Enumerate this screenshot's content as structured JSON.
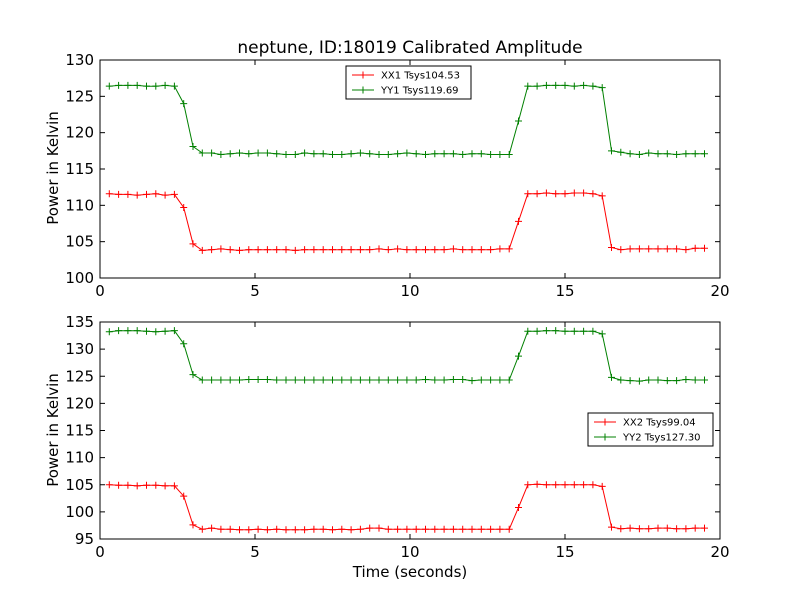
{
  "chart_data": [
    {
      "type": "line",
      "title": "neptune, ID:18019 Calibrated Amplitude",
      "xlabel": "",
      "ylabel": "Power in Kelvin",
      "xlim": [
        0,
        20
      ],
      "ylim": [
        100,
        130
      ],
      "xticks": [
        "0",
        "5",
        "10",
        "15",
        "20"
      ],
      "yticks": [
        "100",
        "105",
        "110",
        "115",
        "120",
        "125",
        "130"
      ],
      "legend_position": "top-center",
      "grid": false,
      "x": [
        0.3,
        0.6,
        0.9,
        1.2,
        1.5,
        1.8,
        2.1,
        2.4,
        2.7,
        3.0,
        3.3,
        3.6,
        3.9,
        4.2,
        4.5,
        4.8,
        5.1,
        5.4,
        5.7,
        6.0,
        6.3,
        6.6,
        6.9,
        7.2,
        7.5,
        7.8,
        8.1,
        8.4,
        8.7,
        9.0,
        9.3,
        9.6,
        9.9,
        10.2,
        10.5,
        10.8,
        11.1,
        11.4,
        11.7,
        12.0,
        12.3,
        12.6,
        12.9,
        13.2,
        13.5,
        13.8,
        14.1,
        14.4,
        14.7,
        15.0,
        15.3,
        15.6,
        15.9,
        16.2,
        16.5,
        16.8,
        17.1,
        17.4,
        17.7,
        18.0,
        18.3,
        18.6,
        18.9,
        19.2,
        19.5
      ],
      "series": [
        {
          "name": "XX1 Tsys104.53",
          "color": "#ff0000",
          "values": [
            111.6,
            111.5,
            111.5,
            111.4,
            111.5,
            111.6,
            111.4,
            111.5,
            109.7,
            104.7,
            103.8,
            103.9,
            104.0,
            103.9,
            103.8,
            103.9,
            103.9,
            103.9,
            103.9,
            103.9,
            103.8,
            103.9,
            103.9,
            103.9,
            103.9,
            103.9,
            103.9,
            103.9,
            103.9,
            104.0,
            103.9,
            104.0,
            103.9,
            103.9,
            103.9,
            103.9,
            103.9,
            104.0,
            103.9,
            103.9,
            103.9,
            103.9,
            104.0,
            104.0,
            107.8,
            111.6,
            111.6,
            111.7,
            111.6,
            111.6,
            111.7,
            111.7,
            111.6,
            111.3,
            104.2,
            103.9,
            104.0,
            104.0,
            104.0,
            104.0,
            104.0,
            104.0,
            103.9,
            104.1,
            104.1
          ]
        },
        {
          "name": "YY1 Tsys119.69",
          "color": "#008000",
          "values": [
            126.4,
            126.5,
            126.5,
            126.5,
            126.4,
            126.4,
            126.5,
            126.4,
            124.0,
            118.1,
            117.2,
            117.2,
            117.0,
            117.1,
            117.2,
            117.1,
            117.2,
            117.2,
            117.1,
            117.0,
            117.0,
            117.2,
            117.1,
            117.1,
            117.0,
            117.0,
            117.1,
            117.2,
            117.1,
            117.0,
            117.0,
            117.1,
            117.2,
            117.1,
            117.0,
            117.1,
            117.1,
            117.1,
            117.0,
            117.1,
            117.1,
            117.0,
            117.0,
            117.0,
            121.6,
            126.4,
            126.4,
            126.5,
            126.5,
            126.5,
            126.4,
            126.5,
            126.4,
            126.2,
            117.5,
            117.3,
            117.1,
            117.0,
            117.2,
            117.1,
            117.1,
            117.0,
            117.1,
            117.1,
            117.1
          ]
        }
      ]
    },
    {
      "type": "line",
      "title": "",
      "xlabel": "Time (seconds)",
      "ylabel": "Power in Kelvin",
      "xlim": [
        0,
        20
      ],
      "ylim": [
        95,
        135
      ],
      "xticks": [
        "0",
        "5",
        "10",
        "15",
        "20"
      ],
      "yticks": [
        "95",
        "100",
        "105",
        "110",
        "115",
        "120",
        "125",
        "130",
        "135"
      ],
      "legend_position": "center-right",
      "grid": false,
      "x": [
        0.3,
        0.6,
        0.9,
        1.2,
        1.5,
        1.8,
        2.1,
        2.4,
        2.7,
        3.0,
        3.3,
        3.6,
        3.9,
        4.2,
        4.5,
        4.8,
        5.1,
        5.4,
        5.7,
        6.0,
        6.3,
        6.6,
        6.9,
        7.2,
        7.5,
        7.8,
        8.1,
        8.4,
        8.7,
        9.0,
        9.3,
        9.6,
        9.9,
        10.2,
        10.5,
        10.8,
        11.1,
        11.4,
        11.7,
        12.0,
        12.3,
        12.6,
        12.9,
        13.2,
        13.5,
        13.8,
        14.1,
        14.4,
        14.7,
        15.0,
        15.3,
        15.6,
        15.9,
        16.2,
        16.5,
        16.8,
        17.1,
        17.4,
        17.7,
        18.0,
        18.3,
        18.6,
        18.9,
        19.2,
        19.5
      ],
      "series": [
        {
          "name": "XX2 Tsys99.04",
          "color": "#ff0000",
          "values": [
            105.0,
            104.9,
            104.9,
            104.8,
            104.9,
            104.9,
            104.8,
            104.8,
            102.9,
            97.6,
            96.8,
            97.0,
            96.8,
            96.8,
            96.7,
            96.7,
            96.8,
            96.7,
            96.8,
            96.7,
            96.7,
            96.7,
            96.8,
            96.8,
            96.7,
            96.8,
            96.7,
            96.8,
            97.0,
            97.0,
            96.8,
            96.8,
            96.8,
            96.8,
            96.8,
            96.8,
            96.8,
            96.8,
            96.8,
            96.8,
            96.8,
            96.8,
            96.8,
            96.8,
            100.8,
            105.0,
            105.1,
            105.0,
            105.0,
            105.0,
            105.0,
            105.0,
            105.0,
            104.7,
            97.2,
            96.9,
            97.0,
            96.9,
            96.9,
            97.0,
            97.0,
            96.9,
            96.9,
            97.0,
            97.0
          ]
        },
        {
          "name": "YY2 Tsys127.30",
          "color": "#008000",
          "values": [
            133.2,
            133.4,
            133.4,
            133.4,
            133.3,
            133.2,
            133.3,
            133.4,
            131.0,
            125.3,
            124.3,
            124.3,
            124.3,
            124.3,
            124.3,
            124.4,
            124.4,
            124.4,
            124.3,
            124.3,
            124.3,
            124.3,
            124.3,
            124.3,
            124.3,
            124.3,
            124.3,
            124.3,
            124.3,
            124.3,
            124.3,
            124.3,
            124.3,
            124.3,
            124.4,
            124.3,
            124.3,
            124.4,
            124.4,
            124.2,
            124.3,
            124.3,
            124.3,
            124.3,
            128.7,
            133.3,
            133.3,
            133.4,
            133.4,
            133.3,
            133.3,
            133.3,
            133.3,
            132.8,
            124.8,
            124.3,
            124.2,
            124.1,
            124.3,
            124.3,
            124.2,
            124.2,
            124.4,
            124.3,
            124.3
          ]
        }
      ]
    }
  ]
}
